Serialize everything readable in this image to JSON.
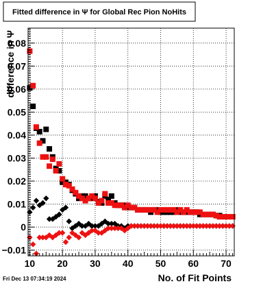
{
  "chart_data": {
    "type": "scatter",
    "title": "Fitted difference in  Ψ  for Global Rec Pion NoHits",
    "xlabel": "No. of Fit Points",
    "ylabel": "difference in Ψ",
    "xlim": [
      9.5,
      72.5
    ],
    "ylim": [
      -0.0125,
      0.0865
    ],
    "x_ticks": [
      10,
      20,
      30,
      40,
      50,
      60,
      70
    ],
    "y_ticks": [
      -0.01,
      0,
      0.01,
      0.02,
      0.03,
      0.04,
      0.05,
      0.06,
      0.07,
      0.08
    ],
    "x_tick_labels": [
      "10",
      "20",
      "30",
      "40",
      "50",
      "60",
      "70"
    ],
    "y_tick_labels": [
      "−0.01",
      "0",
      "0.01",
      "0.02",
      "0.03",
      "0.04",
      "0.05",
      "0.06",
      "0.07",
      "0.08"
    ],
    "grid": true,
    "legend": "none",
    "footer": "Fri Dec 13 07:34:19 2024",
    "series": [
      {
        "marker": "square",
        "color": "#000000",
        "x": [
          10,
          11,
          12,
          13,
          14,
          15,
          16,
          17,
          18,
          19,
          20,
          21,
          22,
          23,
          24,
          25,
          26,
          27,
          28,
          29,
          30,
          31,
          32,
          33,
          34,
          35,
          36,
          37,
          38,
          39,
          40,
          41,
          42,
          43,
          44,
          45,
          46,
          47,
          48,
          49,
          50,
          51,
          52,
          53,
          54,
          55,
          56,
          57,
          58,
          59,
          60,
          61,
          62,
          63,
          64,
          65,
          66,
          67,
          68,
          69,
          70,
          71,
          72
        ],
        "y": [
          0.0605,
          0.0525,
          0.043,
          0.0415,
          0.0375,
          0.0425,
          0.034,
          0.0305,
          0.0255,
          0.0245,
          0.0195,
          0.0195,
          0.0185,
          0.016,
          0.0145,
          0.0125,
          0.0135,
          0.0135,
          0.0125,
          0.0125,
          0.0135,
          0.011,
          0.0105,
          0.0135,
          0.012,
          0.0135,
          0.0105,
          0.0095,
          0.0095,
          0.0095,
          0.0085,
          0.0085,
          0.0085,
          0.0075,
          0.0075,
          0.0075,
          0.0075,
          0.0065,
          0.0075,
          0.0075,
          0.0065,
          0.0065,
          0.0065,
          0.0065,
          0.0065,
          0.0075,
          0.0065,
          0.0065,
          0.0065,
          0.0065,
          0.0065,
          0.0065,
          0.0055,
          0.0055,
          0.0055,
          0.0055,
          0.0055,
          0.005,
          0.005,
          0.0045,
          0.0045,
          0.0045,
          0.0045
        ]
      },
      {
        "marker": "square",
        "color": "#ee1111",
        "x": [
          10,
          11,
          12,
          13,
          14,
          15,
          16,
          17,
          18,
          19,
          20,
          21,
          22,
          23,
          24,
          25,
          26,
          27,
          28,
          29,
          30,
          31,
          32,
          33,
          34,
          35,
          36,
          37,
          38,
          39,
          40,
          41,
          42,
          43,
          44,
          45,
          46,
          47,
          48,
          49,
          50,
          51,
          52,
          53,
          54,
          55,
          56,
          57,
          58,
          59,
          60,
          61,
          62,
          63,
          64,
          65,
          66,
          67,
          68,
          69,
          70,
          71,
          72
        ],
        "y": [
          0.0765,
          0.0615,
          0.0435,
          0.0365,
          0.0305,
          0.0305,
          0.0265,
          0.0295,
          0.0245,
          0.0275,
          0.021,
          0.0185,
          0.018,
          0.0165,
          0.015,
          0.0135,
          0.0125,
          0.0115,
          0.0125,
          0.0135,
          0.0125,
          0.0105,
          0.0115,
          0.0145,
          0.0105,
          0.0105,
          0.0095,
          0.0095,
          0.0095,
          0.0085,
          0.0095,
          0.0085,
          0.0085,
          0.0075,
          0.0075,
          0.0075,
          0.0075,
          0.0075,
          0.0075,
          0.0065,
          0.0075,
          0.0075,
          0.0075,
          0.0075,
          0.0075,
          0.0065,
          0.0075,
          0.0065,
          0.0075,
          0.0065,
          0.0065,
          0.0065,
          0.0065,
          0.0055,
          0.0055,
          0.0055,
          0.0055,
          0.005,
          0.0045,
          0.0045,
          0.0045,
          0.0045,
          0.0045
        ]
      },
      {
        "marker": "diamond",
        "color": "#000000",
        "x": [
          10,
          11,
          12,
          13,
          14,
          15,
          16,
          17,
          18,
          19,
          20,
          21,
          22,
          23,
          24,
          25,
          26,
          27,
          28,
          29,
          30,
          31,
          32,
          33,
          34,
          35,
          36,
          37,
          38,
          39,
          40,
          41,
          42,
          43,
          44,
          45,
          46,
          47,
          48,
          49,
          50,
          51,
          52,
          53,
          54,
          55,
          56,
          57,
          58,
          59,
          60,
          61,
          62,
          63,
          64,
          65,
          66,
          67,
          68,
          69,
          70,
          71,
          72
        ],
        "y": [
          0.0065,
          0.0085,
          0.0115,
          0.0095,
          0.0105,
          0.0125,
          0.0035,
          0.0035,
          0.0045,
          0.0055,
          0.0075,
          0.0085,
          0.0025,
          -0.0005,
          0.0005,
          0.0015,
          0.0005,
          0.0005,
          0.0015,
          0.0005,
          0.0005,
          0.0005,
          0.0015,
          0.0025,
          0.0015,
          0.0015,
          0.0015,
          0.0005,
          0.0005,
          -0.0005,
          0.0005,
          0.0005,
          0.0005,
          0.0005,
          0.0005,
          0.0005,
          0.0005,
          0.0005,
          0.0005,
          0.0005,
          0.0005,
          0.0005,
          0.0005,
          0.0005,
          0.0005,
          0.0005,
          0.0005,
          0.0005,
          0.0005,
          0.0005,
          0.0005,
          0.0005,
          0.0005,
          0.0005,
          0.0005,
          0.0005,
          0.0005,
          0.0005,
          0.0005,
          0.0005,
          0.0005,
          0.0005,
          0.0005
        ]
      },
      {
        "marker": "diamond",
        "color": "#ee1111",
        "x": [
          10,
          11,
          12,
          13,
          14,
          15,
          16,
          17,
          18,
          19,
          20,
          21,
          22,
          23,
          24,
          25,
          26,
          27,
          28,
          29,
          30,
          31,
          32,
          33,
          34,
          35,
          36,
          37,
          38,
          39,
          40,
          41,
          42,
          43,
          44,
          45,
          46,
          47,
          48,
          49,
          50,
          51,
          52,
          53,
          54,
          55,
          56,
          57,
          58,
          59,
          60,
          61,
          62,
          63,
          64,
          65,
          66,
          67,
          68,
          69,
          70,
          71,
          72
        ],
        "y": [
          -0.0045,
          -0.0075,
          -0.0115,
          -0.0045,
          -0.0045,
          -0.0045,
          -0.0035,
          -0.0045,
          -0.0035,
          -0.0025,
          -0.0025,
          -0.0065,
          -0.0045,
          -0.0025,
          -0.0035,
          -0.0045,
          -0.0025,
          -0.0035,
          -0.0025,
          -0.0015,
          -0.0015,
          -0.0025,
          -0.0025,
          -0.0015,
          -0.0005,
          -0.0005,
          -0.0005,
          -0.0005,
          -0.0005,
          -0.0015,
          -0.0005,
          0.0005,
          0.0005,
          0.0005,
          0.0005,
          0.0005,
          0.0005,
          0.0005,
          0.0005,
          0.0005,
          0.0005,
          0.0005,
          0.0005,
          0.0005,
          0.0005,
          0.0005,
          0.0005,
          0.0005,
          0.0005,
          0.0005,
          0.0005,
          0.0005,
          0.0005,
          0.0005,
          0.0005,
          0.0005,
          0.0005,
          0.0005,
          0.0005,
          0.0005,
          0.0005,
          0.0005,
          0.0005
        ]
      }
    ]
  }
}
